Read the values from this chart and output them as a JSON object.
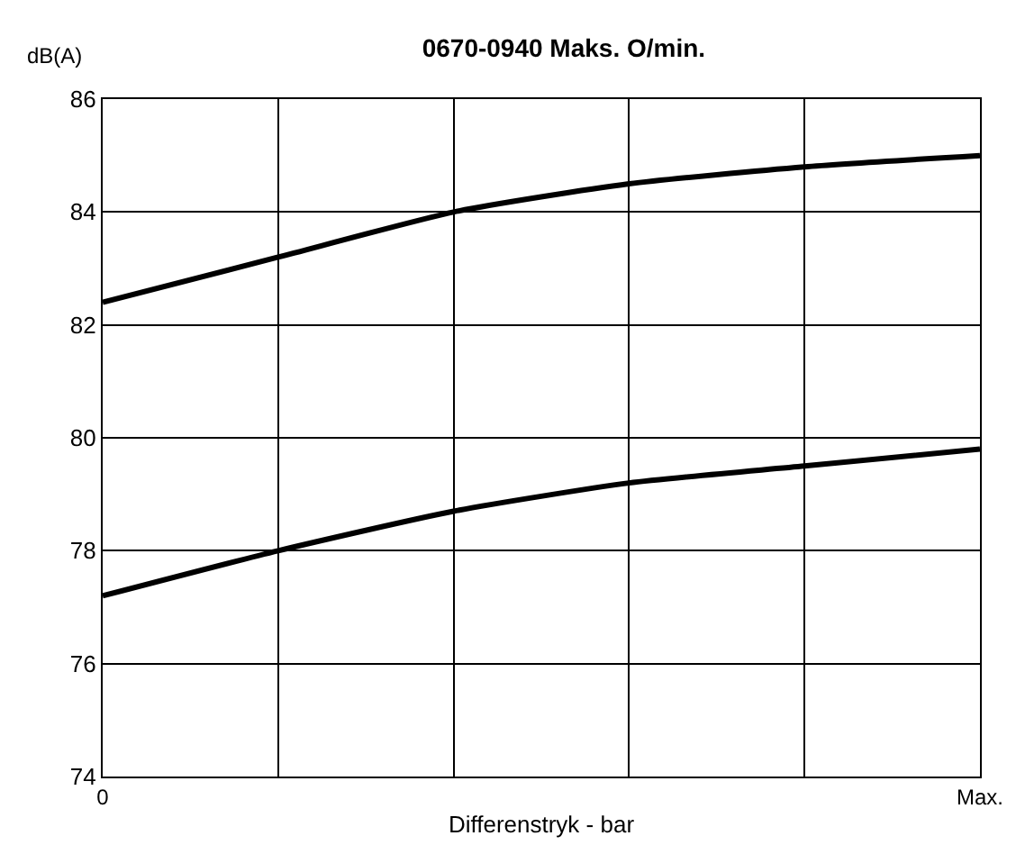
{
  "chart_data": {
    "type": "line",
    "title": "0670-0940 Maks. O/min.",
    "xlabel": "Differenstryk - bar",
    "ylabel": "dB(A)",
    "categories": [
      "0",
      null,
      null,
      null,
      null,
      "Max."
    ],
    "series": [
      {
        "color": "#000000",
        "values": [
          82.4,
          83.2,
          84.0,
          84.5,
          84.8,
          85.0
        ]
      },
      {
        "color": "#000000",
        "values": [
          77.2,
          78.0,
          78.7,
          79.2,
          79.5,
          79.8
        ]
      }
    ],
    "ylim": [
      74,
      86
    ],
    "yticks": [
      74,
      76,
      78,
      80,
      82,
      84,
      86
    ],
    "grid": true,
    "line_style": "solid"
  }
}
